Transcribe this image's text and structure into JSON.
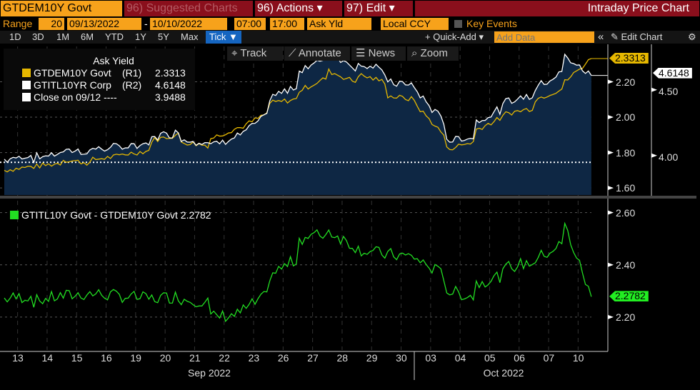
{
  "header": {
    "ticker": "GTDEM10Y Govt",
    "suggested": "96) Suggested Charts",
    "actions": "96) Actions ▾",
    "edit": "97) Edit ▾",
    "title": "Intraday Price Chart"
  },
  "range": {
    "label": "Range",
    "period": "20",
    "start": "09/13/2022",
    "dash": "-",
    "end": "10/10/2022",
    "time_start": "07:00",
    "time_end": "17:00",
    "field": "Ask Yld",
    "currency": "Local CCY",
    "key_events": "Key Events"
  },
  "toolbar": {
    "periods": [
      "1D",
      "3D",
      "1M",
      "6M",
      "YTD",
      "1Y",
      "5Y",
      "Max"
    ],
    "tick": "Tick ▼",
    "quick_add": "+ Quick-Add ▾",
    "add_data_placeholder": "Add Data",
    "collapse": "«",
    "edit_chart": "✎ Edit Chart",
    "settings": "⚙"
  },
  "overlay": {
    "track": "Track",
    "annotate": "Annotate",
    "news": "News",
    "zoom": "Zoom"
  },
  "legend": {
    "title": "Ask Yield",
    "rows": [
      {
        "name": "GTDEM10Y Govt",
        "axis": "(R1)",
        "value": "2.3313",
        "color": "#e6b800"
      },
      {
        "name": "GTITL10YR Corp",
        "axis": "(R2)",
        "value": "4.6148",
        "color": "#ffffff"
      },
      {
        "name": "Close on 09/12 ----",
        "axis": "",
        "value": "3.9488",
        "color": "#ffffff"
      }
    ]
  },
  "lower_legend": {
    "text": "GTITL10Y Govt - GTDEM10Y Govt 2.2782",
    "color": "#22dd22"
  },
  "chart_data": {
    "type": "line",
    "x_days": [
      "13",
      "14",
      "15",
      "16",
      "19",
      "20",
      "21",
      "22",
      "23",
      "26",
      "27",
      "28",
      "29",
      "30",
      "03",
      "04",
      "05",
      "06",
      "07",
      "10"
    ],
    "months": [
      "Sep 2022",
      "Oct 2022"
    ],
    "top": {
      "r1_ticks": [
        "2.20",
        "2.00",
        "1.80",
        "1.60"
      ],
      "r1_range": [
        1.56,
        2.4
      ],
      "r2_ticks": [
        "4.50",
        "4.00"
      ],
      "r2_range": [
        3.7,
        4.83
      ],
      "last_r1": "2.3313",
      "last_r2": "4.6148",
      "close_level": 3.9488,
      "dem_daily": [
        [
          1.7,
          1.72
        ],
        [
          1.72,
          1.74
        ],
        [
          1.76,
          1.74
        ],
        [
          1.76,
          1.78
        ],
        [
          1.79,
          1.81
        ],
        [
          1.87,
          1.9
        ],
        [
          1.86,
          1.84
        ],
        [
          1.88,
          1.94
        ],
        [
          1.94,
          2.02
        ],
        [
          2.08,
          2.1
        ],
        [
          2.15,
          2.22
        ],
        [
          2.26,
          2.2
        ],
        [
          2.24,
          2.2
        ],
        [
          2.12,
          2.1
        ],
        [
          2.06,
          1.9
        ],
        [
          1.82,
          1.86
        ],
        [
          1.93,
          2.0
        ],
        [
          2.02,
          2.05
        ],
        [
          2.1,
          2.16
        ],
        [
          2.2,
          2.3313
        ]
      ]
    },
    "bottom": {
      "ticks": [
        "2.60",
        "2.40",
        "2.20"
      ],
      "range": [
        2.074,
        2.64
      ],
      "last": "2.2782",
      "spread_daily": [
        [
          2.27,
          2.28
        ],
        [
          2.26,
          2.28
        ],
        [
          2.28,
          2.29
        ],
        [
          2.29,
          2.28
        ],
        [
          2.28,
          2.27
        ],
        [
          2.27,
          2.28
        ],
        [
          2.27,
          2.26
        ],
        [
          2.2,
          2.21
        ],
        [
          2.22,
          2.28
        ],
        [
          2.36,
          2.42
        ],
        [
          2.5,
          2.52
        ],
        [
          2.53,
          2.47
        ],
        [
          2.46,
          2.44
        ],
        [
          2.44,
          2.43
        ],
        [
          2.42,
          2.36
        ],
        [
          2.3,
          2.28
        ],
        [
          2.33,
          2.36
        ],
        [
          2.39,
          2.41
        ],
        [
          2.42,
          2.48
        ],
        [
          2.55,
          2.2782
        ]
      ]
    }
  }
}
